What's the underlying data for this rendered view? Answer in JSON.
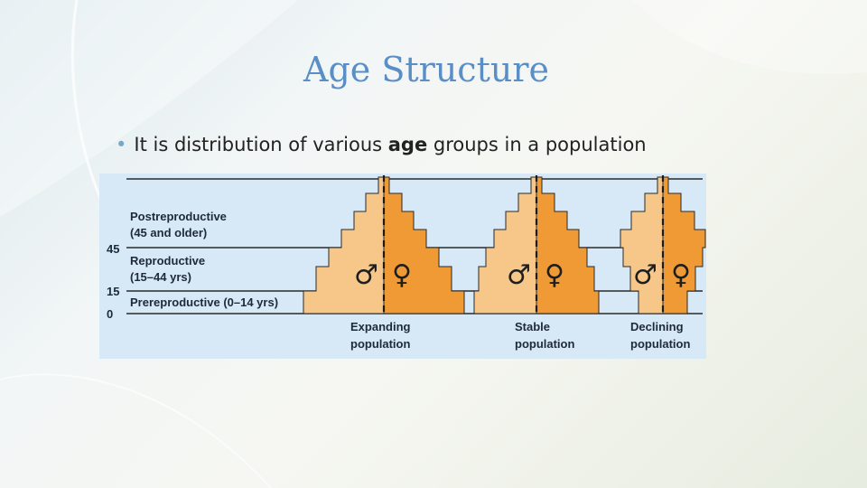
{
  "slide": {
    "title": "Age Structure",
    "bullet": {
      "before": "It is distribution of various ",
      "emphasis": "age",
      "after": " groups in a population"
    }
  },
  "figure": {
    "age_groups": [
      {
        "line1": "Postreproductive",
        "line2": "(45 and older)"
      },
      {
        "line1": "Reproductive",
        "line2": "(15–44 yrs)"
      },
      {
        "line1": "Prereproductive (0–14 yrs)",
        "line2": ""
      }
    ],
    "age_ticks": [
      "45",
      "15",
      "0"
    ],
    "pyramids": [
      {
        "line1": "Expanding",
        "line2": "population"
      },
      {
        "line1": "Stable",
        "line2": "population"
      },
      {
        "line1": "Declining",
        "line2": "population"
      }
    ],
    "male_symbol": "♂",
    "female_symbol": "♀",
    "colors": {
      "background": "#d7e8f7",
      "male": "#f7c789",
      "female": "#ef9a35",
      "edge": "#2a2a2a"
    }
  }
}
